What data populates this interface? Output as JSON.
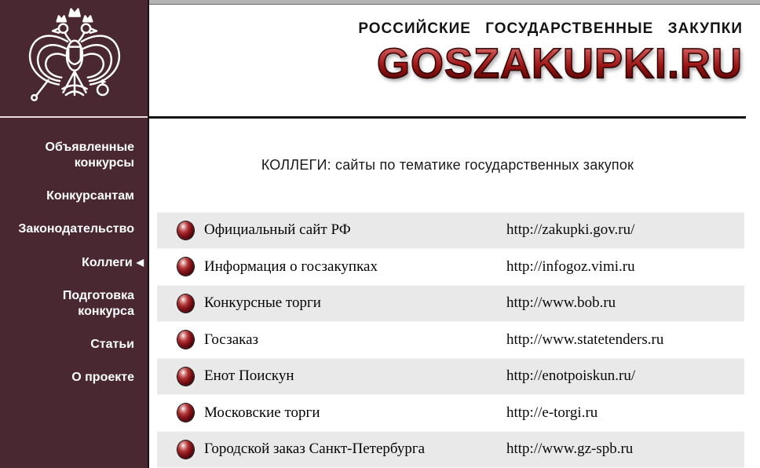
{
  "header": {
    "tagline": "РОССИЙСКИЕ ГОСУДАРСТВЕННЫЕ ЗАКУПКИ",
    "logo_text": "GOSZAKUPKI.RU",
    "logo_color": "#9c1515",
    "emblem": "russian-double-headed-eagle-coat-of-arms"
  },
  "sidebar": {
    "bg_color": "#492832",
    "active_marker": "◀",
    "items": [
      {
        "key": "announced-contests",
        "label": "Объявленные конкурсы",
        "active": false
      },
      {
        "key": "for-contestants",
        "label": "Конкурсантам",
        "active": false
      },
      {
        "key": "legislation",
        "label": "Законодательство",
        "active": false
      },
      {
        "key": "colleagues",
        "label": "Коллеги",
        "active": true
      },
      {
        "key": "contest-preparation",
        "label": "Подготовка конкурса",
        "active": false
      },
      {
        "key": "articles",
        "label": "Статьи",
        "active": false
      },
      {
        "key": "about-project",
        "label": "О проекте",
        "active": false
      }
    ]
  },
  "main": {
    "heading": "КОЛЛЕГИ:  сайты по тематике государственных закупок",
    "row_alt_color": "#e9e9e9",
    "bullet_color": "#801118",
    "links": [
      {
        "name": "Официальный сайт РФ",
        "url": "http://zakupki.gov.ru/"
      },
      {
        "name": "Информация о госзакупках",
        "url": "http://infogoz.vimi.ru"
      },
      {
        "name": "Конкурсные торги",
        "url": "http://www.bob.ru"
      },
      {
        "name": "Госзаказ",
        "url": "http://www.statetenders.ru"
      },
      {
        "name": "Енот Поискун",
        "url": "http://enotpoiskun.ru/"
      },
      {
        "name": "Московские торги",
        "url": "http://e-torgi.ru"
      },
      {
        "name": "Городской заказ Санкт-Петербурга",
        "url": "http://www.gz-spb.ru"
      }
    ]
  }
}
